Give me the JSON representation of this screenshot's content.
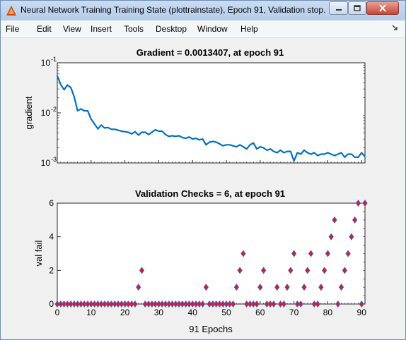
{
  "window": {
    "title": "Neural Network Training Training State (plottrainstate), Epoch 91, Validation stop."
  },
  "icons": {
    "app": "matlab-figure-icon",
    "minimize": "minimize-icon",
    "maximize": "maximize-icon",
    "close": "close-icon",
    "dock": "dock-arrow-icon"
  },
  "menu": {
    "items": [
      "File",
      "Edit",
      "View",
      "Insert",
      "Tools",
      "Desktop",
      "Window",
      "Help"
    ]
  },
  "colors": {
    "line": "#0072bd",
    "marker_fill": "#e8112d",
    "marker_edge": "#4a5eb0"
  },
  "chart_data": [
    {
      "type": "line",
      "title": "Gradient = 0.0013407, at epoch 91",
      "xlabel": "",
      "ylabel": "gradient",
      "yscale": "log",
      "xlim": [
        0,
        91
      ],
      "ylim": [
        0.001,
        0.1
      ],
      "yticks": [
        0.001,
        0.01,
        0.1
      ],
      "ytick_labels": [
        {
          "base": "10",
          "exp": "-3"
        },
        {
          "base": "10",
          "exp": "-2"
        },
        {
          "base": "10",
          "exp": "-1"
        }
      ],
      "x": [
        0,
        1,
        2,
        3,
        4,
        5,
        6,
        7,
        8,
        9,
        10,
        11,
        12,
        13,
        14,
        15,
        16,
        17,
        18,
        19,
        20,
        21,
        22,
        23,
        24,
        25,
        26,
        27,
        28,
        29,
        30,
        31,
        32,
        33,
        34,
        35,
        36,
        37,
        38,
        39,
        40,
        41,
        42,
        43,
        44,
        45,
        46,
        47,
        48,
        49,
        50,
        51,
        52,
        53,
        54,
        55,
        56,
        57,
        58,
        59,
        60,
        61,
        62,
        63,
        64,
        65,
        66,
        67,
        68,
        69,
        70,
        71,
        72,
        73,
        74,
        75,
        76,
        77,
        78,
        79,
        80,
        81,
        82,
        83,
        84,
        85,
        86,
        87,
        88,
        89,
        90,
        91
      ],
      "y": [
        0.055,
        0.037,
        0.029,
        0.036,
        0.032,
        0.021,
        0.011,
        0.012,
        0.011,
        0.011,
        0.0075,
        0.006,
        0.0048,
        0.0057,
        0.005,
        0.0051,
        0.0047,
        0.0047,
        0.0045,
        0.0043,
        0.0042,
        0.0041,
        0.0038,
        0.0042,
        0.0036,
        0.0041,
        0.0041,
        0.0037,
        0.0041,
        0.0046,
        0.0043,
        0.0043,
        0.0037,
        0.0034,
        0.0035,
        0.0034,
        0.0035,
        0.0032,
        0.0031,
        0.0033,
        0.003,
        0.0031,
        0.0029,
        0.003,
        0.0023,
        0.0026,
        0.0027,
        0.0026,
        0.0024,
        0.0022,
        0.0023,
        0.0023,
        0.0022,
        0.0021,
        0.0023,
        0.0021,
        0.0019,
        0.0023,
        0.0025,
        0.0019,
        0.0021,
        0.002,
        0.0018,
        0.0019,
        0.0017,
        0.0016,
        0.0018,
        0.0016,
        0.0017,
        0.0017,
        0.0011,
        0.0016,
        0.0015,
        0.0018,
        0.0016,
        0.0015,
        0.0016,
        0.0014,
        0.0015,
        0.0015,
        0.0016,
        0.0015,
        0.0014,
        0.0015,
        0.0016,
        0.0013,
        0.0015,
        0.0015,
        0.0013,
        0.0013,
        0.0016,
        0.0013407
      ]
    },
    {
      "type": "scatter",
      "title": "Validation Checks = 6, at epoch 91",
      "xlabel": "91 Epochs",
      "ylabel": "val fail",
      "xlim": [
        0,
        91
      ],
      "ylim": [
        0,
        6
      ],
      "xticks": [
        0,
        10,
        20,
        30,
        40,
        50,
        60,
        70,
        80,
        90
      ],
      "yticks": [
        0,
        2,
        4,
        6
      ],
      "x": [
        0,
        1,
        2,
        3,
        4,
        5,
        6,
        7,
        8,
        9,
        10,
        11,
        12,
        13,
        14,
        15,
        16,
        17,
        18,
        19,
        20,
        21,
        22,
        23,
        24,
        25,
        26,
        27,
        28,
        29,
        30,
        31,
        32,
        33,
        34,
        35,
        36,
        37,
        38,
        39,
        40,
        41,
        42,
        43,
        44,
        45,
        46,
        47,
        48,
        49,
        50,
        51,
        52,
        53,
        54,
        55,
        56,
        57,
        58,
        59,
        60,
        61,
        62,
        63,
        64,
        65,
        66,
        67,
        68,
        69,
        70,
        71,
        72,
        73,
        74,
        75,
        76,
        77,
        78,
        79,
        80,
        81,
        82,
        83,
        84,
        85,
        86,
        87,
        88,
        89,
        90,
        91
      ],
      "y": [
        0,
        0,
        0,
        0,
        0,
        0,
        0,
        0,
        0,
        0,
        0,
        0,
        0,
        0,
        0,
        0,
        0,
        0,
        0,
        0,
        0,
        0,
        0,
        0,
        1,
        2,
        0,
        0,
        0,
        0,
        0,
        0,
        0,
        0,
        0,
        0,
        0,
        0,
        0,
        0,
        0,
        0,
        0,
        0,
        1,
        0,
        0,
        0,
        0,
        0,
        0,
        0,
        0,
        1,
        2,
        3,
        0,
        0,
        0,
        0,
        1,
        2,
        0,
        0,
        0,
        1,
        0,
        0,
        1,
        2,
        3,
        0,
        0,
        1,
        2,
        3,
        0,
        0,
        1,
        2,
        3,
        4,
        5,
        0,
        1,
        2,
        3,
        4,
        5,
        6,
        0,
        6
      ]
    }
  ]
}
